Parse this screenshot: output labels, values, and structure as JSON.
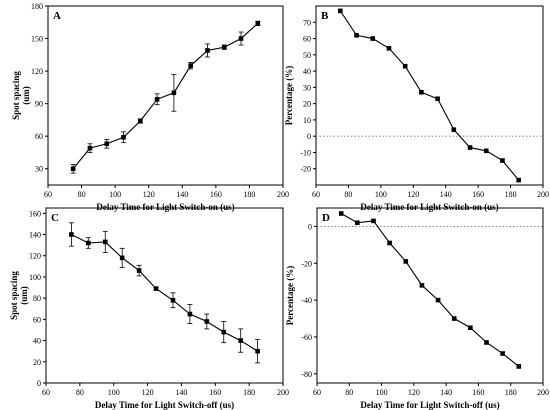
{
  "chart_data": [
    {
      "type": "line",
      "panel_label": "A",
      "xlabel": "Delay Time for Light Switch-on  (us)",
      "ylabel": "Spot spacing",
      "ylabel_unit": "(um)",
      "xlim": [
        60,
        200
      ],
      "ylim": [
        15,
        180
      ],
      "xticks": [
        60,
        80,
        100,
        120,
        140,
        160,
        180,
        200
      ],
      "yticks": [
        30,
        60,
        90,
        120,
        150,
        180
      ],
      "reference_line": null,
      "series": [
        {
          "x": [
            75,
            85,
            95,
            105,
            115,
            125,
            135,
            145,
            155,
            165,
            175,
            185
          ],
          "y": [
            30,
            49,
            53,
            59,
            74,
            94,
            100,
            125,
            139,
            142,
            150,
            164
          ],
          "err": [
            4,
            4,
            4,
            5,
            2,
            5,
            17,
            3,
            6,
            2,
            6,
            2
          ]
        }
      ]
    },
    {
      "type": "line",
      "panel_label": "B",
      "xlabel": "Delay Time for Light Switch-on  (us)",
      "ylabel": "Percentage (%)",
      "ylabel_unit": "",
      "xlim": [
        60,
        200
      ],
      "ylim": [
        -30,
        80
      ],
      "xticks": [
        60,
        80,
        100,
        120,
        140,
        160,
        180,
        200
      ],
      "yticks": [
        -20,
        -10,
        0,
        10,
        20,
        30,
        40,
        50,
        60,
        70
      ],
      "reference_line": 0,
      "series": [
        {
          "x": [
            75,
            85,
            95,
            105,
            115,
            125,
            135,
            145,
            155,
            165,
            175,
            185
          ],
          "y": [
            77,
            62,
            60,
            54,
            43,
            27,
            23,
            4,
            -7,
            -9,
            -15,
            -27
          ],
          "err": []
        }
      ]
    },
    {
      "type": "line",
      "panel_label": "C",
      "xlabel": "Delay Time for Light Switch-off  (us)",
      "ylabel": "Spot spacing",
      "ylabel_unit": "(um)",
      "xlim": [
        60,
        200
      ],
      "ylim": [
        0,
        165
      ],
      "xticks": [
        60,
        80,
        100,
        120,
        140,
        160,
        180,
        200
      ],
      "yticks": [
        0,
        20,
        40,
        60,
        80,
        100,
        120,
        140,
        160
      ],
      "reference_line": null,
      "series": [
        {
          "x": [
            75,
            85,
            95,
            105,
            115,
            125,
            135,
            145,
            155,
            165,
            175,
            185
          ],
          "y": [
            140,
            132,
            133,
            118,
            106,
            89,
            78,
            65,
            58,
            48,
            40,
            30
          ],
          "err": [
            11,
            5,
            10,
            9,
            5,
            1,
            7,
            9,
            7,
            10,
            11,
            11
          ]
        }
      ]
    },
    {
      "type": "line",
      "panel_label": "D",
      "xlabel": "Delay Time for Light Switch-off  (us)",
      "ylabel": "Percentage (%)",
      "ylabel_unit": "",
      "xlim": [
        60,
        200
      ],
      "ylim": [
        -85,
        10
      ],
      "xticks": [
        60,
        80,
        100,
        120,
        140,
        160,
        180,
        200
      ],
      "yticks": [
        -80,
        -60,
        -40,
        -20,
        0
      ],
      "reference_line": 0,
      "series": [
        {
          "x": [
            75,
            85,
            95,
            105,
            115,
            125,
            135,
            145,
            155,
            165,
            175,
            185
          ],
          "y": [
            7,
            2,
            3,
            -9,
            -19,
            -32,
            -40,
            -50,
            -55,
            -63,
            -69,
            -76
          ],
          "err": []
        }
      ]
    }
  ]
}
